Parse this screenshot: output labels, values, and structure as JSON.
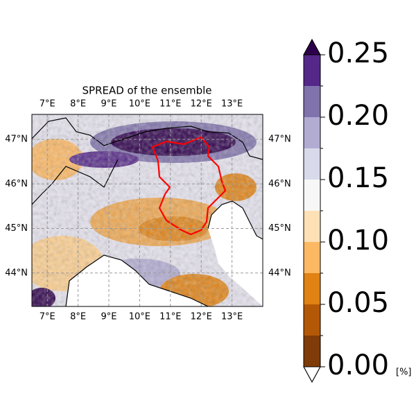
{
  "chart_data": {
    "type": "map",
    "title": "SPREAD of the ensemble",
    "xlim": [
      6.5,
      14
    ],
    "ylim": [
      43.25,
      47.56
    ],
    "xticks": [
      {
        "value": 7,
        "label": "7°E"
      },
      {
        "value": 8,
        "label": "8°E"
      },
      {
        "value": 9,
        "label": "9°E"
      },
      {
        "value": 10,
        "label": "10°E"
      },
      {
        "value": 11,
        "label": "11°E"
      },
      {
        "value": 12,
        "label": "12°E"
      },
      {
        "value": 13,
        "label": "13°E"
      }
    ],
    "yticks": [
      {
        "value": 44,
        "label": "44°N"
      },
      {
        "value": 45,
        "label": "45°N"
      },
      {
        "value": 46,
        "label": "46°N"
      },
      {
        "value": 47,
        "label": "47°N"
      }
    ],
    "grid": true,
    "colorbar": {
      "boundaries": [
        0,
        0.025,
        0.05,
        0.075,
        0.1,
        0.125,
        0.15,
        0.175,
        0.2,
        0.225,
        0.25
      ],
      "colors": [
        "#7f3b08",
        "#b35806",
        "#e08214",
        "#fdb863",
        "#fee0b6",
        "#f7f7f7",
        "#d8daeb",
        "#b2abd2",
        "#8073ac",
        "#542788"
      ],
      "over_color": "#2d004b",
      "under_color": "#ffffff",
      "ticks": [
        {
          "value": 0,
          "label": "0.00"
        },
        {
          "value": 0.05,
          "label": "0.05"
        },
        {
          "value": 0.1,
          "label": "0.10"
        },
        {
          "value": 0.15,
          "label": "0.15"
        },
        {
          "value": 0.2,
          "label": "0.20"
        },
        {
          "value": 0.25,
          "label": "0.25"
        }
      ],
      "unit": "[%]"
    }
  }
}
